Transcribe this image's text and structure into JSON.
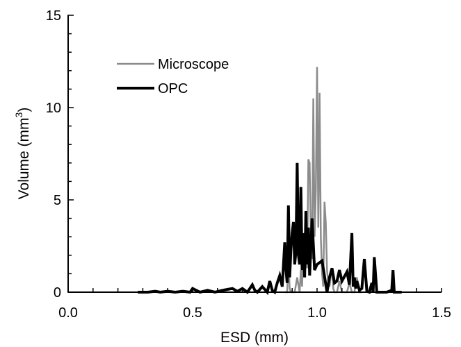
{
  "chart_data": {
    "type": "line",
    "xlabel": "ESD (mm)",
    "ylabel": "Volume (mm",
    "ylabel_sup": "3",
    "ylabel_tail": ")",
    "xlim": [
      0,
      1.5
    ],
    "ylim": [
      0,
      15
    ],
    "x_ticks": [
      0.0,
      0.5,
      1.0,
      1.5
    ],
    "x_tick_labels": [
      "0.0",
      "0.5",
      "1.0",
      "1.5"
    ],
    "y_ticks": [
      0,
      5,
      10,
      15
    ],
    "y_tick_labels": [
      "0",
      "5",
      "10",
      "15"
    ],
    "grid": false,
    "legend": "top-left",
    "series": [
      {
        "name": "Microscope",
        "color": "#8c8c8c",
        "x": [
          0.87,
          0.88,
          0.885,
          0.89,
          0.895,
          0.9,
          0.91,
          0.92,
          0.93,
          0.935,
          0.94,
          0.945,
          0.95,
          0.955,
          0.96,
          0.965,
          0.97,
          0.975,
          0.98,
          0.985,
          0.99,
          0.995,
          1.0,
          1.005,
          1.01,
          1.015,
          1.02,
          1.025,
          1.03,
          1.035,
          1.04,
          1.045,
          1.05,
          1.055,
          1.06,
          1.065,
          1.07,
          1.08,
          1.09,
          1.1,
          1.11,
          1.12,
          1.13,
          1.14,
          1.15,
          1.16,
          1.17,
          1.18
        ],
        "y": [
          0,
          0,
          1.8,
          0.2,
          0,
          0,
          0,
          0.8,
          0,
          1.2,
          0.3,
          2.8,
          1.5,
          3.0,
          1.3,
          7.2,
          7.0,
          3.0,
          1.8,
          10.5,
          3.0,
          5.5,
          12.2,
          3.5,
          10.8,
          3.0,
          1.0,
          0.3,
          4.9,
          3.8,
          1.2,
          0.5,
          0.3,
          0.9,
          1.3,
          0.2,
          0,
          0,
          0.6,
          0,
          0,
          0,
          0.5,
          0,
          0,
          0.8,
          0,
          0
        ]
      },
      {
        "name": "OPC",
        "color": "#000000",
        "x": [
          0.28,
          0.32,
          0.35,
          0.37,
          0.4,
          0.43,
          0.46,
          0.49,
          0.5,
          0.53,
          0.56,
          0.59,
          0.62,
          0.64,
          0.66,
          0.68,
          0.7,
          0.72,
          0.74,
          0.75,
          0.76,
          0.78,
          0.8,
          0.81,
          0.82,
          0.83,
          0.84,
          0.85,
          0.86,
          0.87,
          0.875,
          0.88,
          0.885,
          0.89,
          0.895,
          0.9,
          0.905,
          0.91,
          0.915,
          0.92,
          0.925,
          0.93,
          0.935,
          0.94,
          0.945,
          0.95,
          0.955,
          0.96,
          0.965,
          0.97,
          0.98,
          0.99,
          1.0,
          1.02,
          1.04,
          1.05,
          1.06,
          1.07,
          1.08,
          1.09,
          1.1,
          1.12,
          1.13,
          1.14,
          1.145,
          1.15,
          1.155,
          1.16,
          1.17,
          1.18,
          1.19,
          1.2,
          1.21,
          1.22,
          1.225,
          1.23,
          1.24,
          1.26,
          1.28,
          1.3,
          1.305,
          1.31,
          1.32,
          1.34
        ],
        "y": [
          0,
          0,
          0.05,
          0,
          0.05,
          0,
          0.05,
          0,
          0.2,
          0,
          0.1,
          0,
          0.1,
          0.15,
          0.2,
          0.05,
          0.2,
          0,
          0.4,
          0.1,
          0,
          0.3,
          0,
          0.6,
          0.1,
          0,
          0.5,
          0.9,
          0.3,
          2.7,
          1.2,
          0.5,
          4.7,
          0.8,
          2.3,
          3.2,
          3.8,
          1.5,
          2.2,
          7.0,
          2.0,
          1.5,
          5.7,
          1.2,
          3.2,
          0.8,
          4.4,
          1.5,
          3.5,
          0.9,
          4.0,
          1.2,
          1.5,
          1.7,
          0,
          0.8,
          1.3,
          0.5,
          0.6,
          1.2,
          0.6,
          1.1,
          0.4,
          3.2,
          0.3,
          0.8,
          0.2,
          0.6,
          0.1,
          0.2,
          1.8,
          0.05,
          0,
          0.5,
          0,
          1.9,
          0,
          0,
          0,
          0.1,
          1.2,
          0,
          0,
          0
        ]
      }
    ]
  }
}
